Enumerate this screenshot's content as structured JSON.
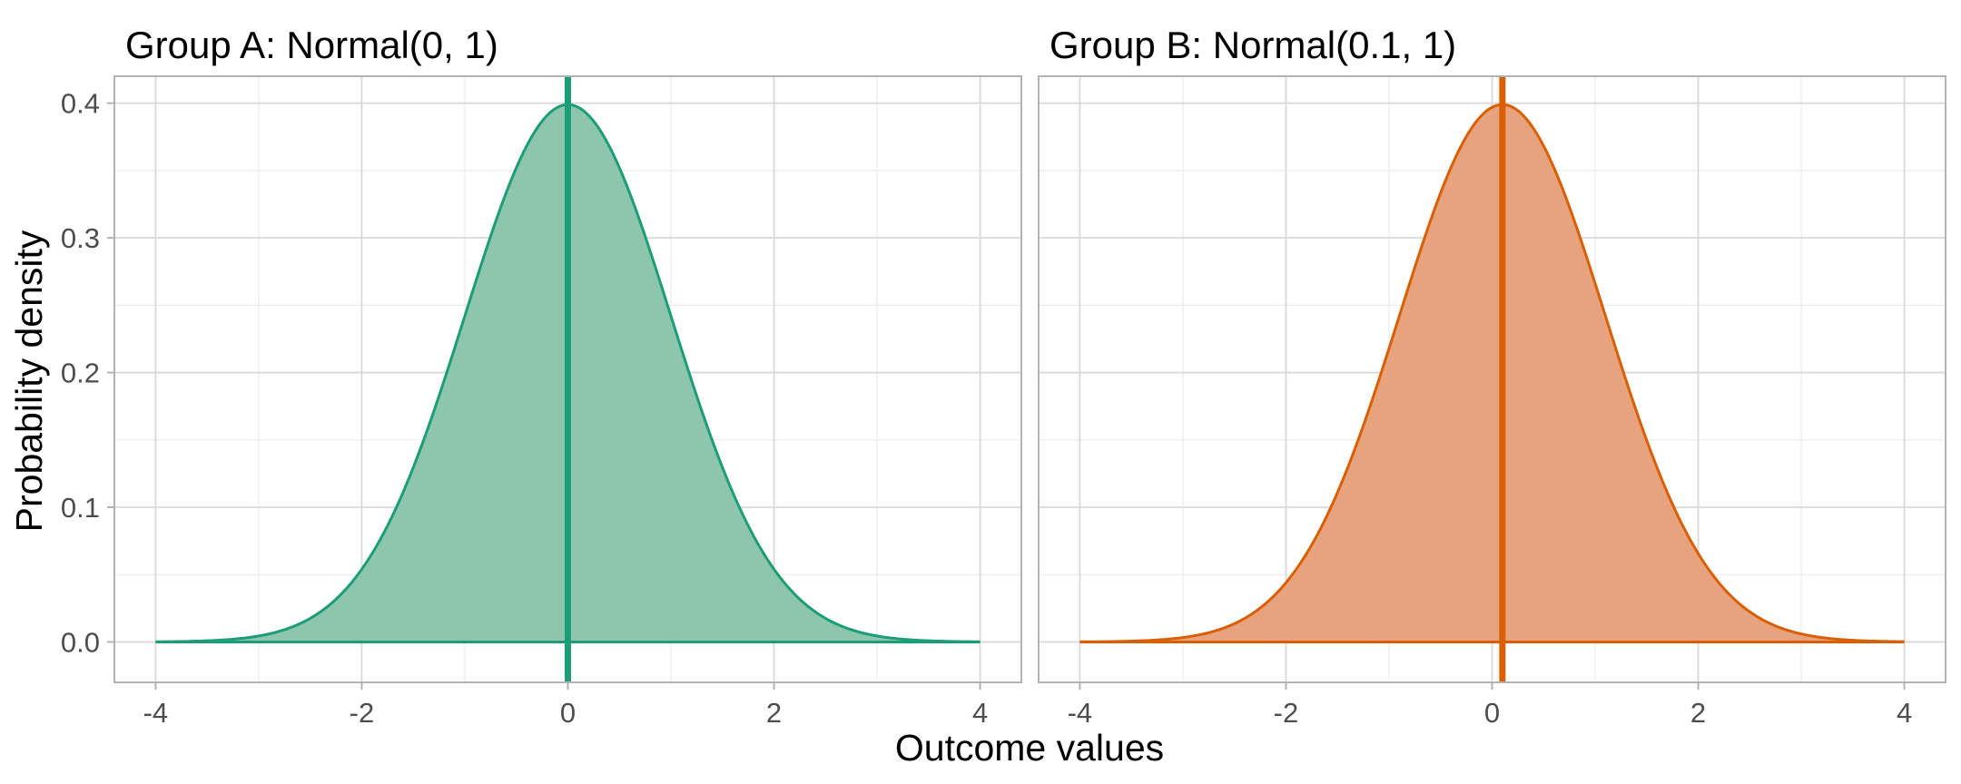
{
  "chart_data": {
    "type": "area",
    "xlabel": "Outcome values",
    "ylabel": "Probability density",
    "grid": true,
    "legend": "none",
    "panels": [
      {
        "title": "Group A:  Normal(0, 1)",
        "distribution": {
          "family": "normal",
          "mean": 0,
          "sd": 1
        },
        "color": "#1b9e77",
        "fill_color": "#8ec5ad",
        "xlim": [
          -4.4,
          4.4
        ],
        "ylim": [
          -0.03,
          0.42
        ],
        "x_ticks": [
          "-4",
          "-2",
          "0",
          "2",
          "4"
        ],
        "x_tick_values": [
          -4,
          -2,
          0,
          2,
          4
        ],
        "y_ticks": [
          "0.0",
          "0.1",
          "0.2",
          "0.3",
          "0.4"
        ],
        "y_tick_values": [
          0,
          0.1,
          0.2,
          0.3,
          0.4
        ],
        "x_range": [
          -4,
          4
        ],
        "vline_x": 0,
        "peak_density": 0.399
      },
      {
        "title": "Group B:  Normal(0.1, 1)",
        "distribution": {
          "family": "normal",
          "mean": 0.1,
          "sd": 1
        },
        "color": "#d95f02",
        "fill_color": "#e6a37e",
        "xlim": [
          -4.4,
          4.4
        ],
        "ylim": [
          -0.03,
          0.42
        ],
        "x_ticks": [
          "-4",
          "-2",
          "0",
          "2",
          "4"
        ],
        "x_tick_values": [
          -4,
          -2,
          0,
          2,
          4
        ],
        "y_ticks": [],
        "y_tick_values": [
          0,
          0.1,
          0.2,
          0.3,
          0.4
        ],
        "x_range": [
          -4,
          4
        ],
        "vline_x": 0.1,
        "peak_density": 0.399
      }
    ]
  }
}
